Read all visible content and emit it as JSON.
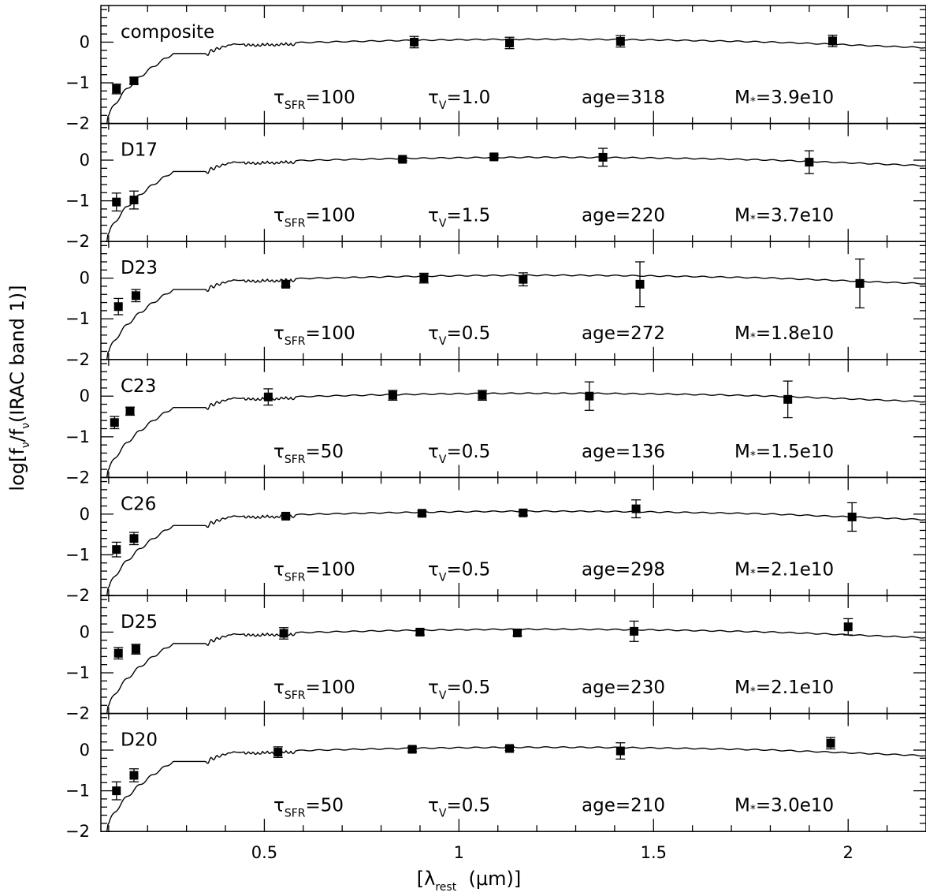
{
  "chart_data": {
    "type": "scatter",
    "xlabel_parts": {
      "open": "[λ",
      "sub": "rest",
      "close": "  (μm)]"
    },
    "ylabel_parts": {
      "a": "log[f",
      "b": "ν",
      "c": "/f",
      "d": "ν",
      "e": "(IRAC band 1)]"
    },
    "xlim": [
      0.08,
      2.2
    ],
    "ylim": [
      -2,
      0.9
    ],
    "x_ticks": [
      0.5,
      1,
      1.5,
      2
    ],
    "x_tick_labels": [
      "0.5",
      "1",
      "1.5",
      "2"
    ],
    "y_ticks": [
      0,
      -1,
      -2
    ],
    "y_tick_labels": [
      "0",
      "−1",
      "−2"
    ],
    "param_labels": {
      "tau_sfr": "τ",
      "tau_sfr_sub": "SFR",
      "tau_v": "τ",
      "tau_v_sub": "V",
      "age": "age=",
      "mass": "M",
      "mass_sub": "*",
      "eq": "="
    },
    "panels": [
      {
        "name": "composite",
        "tau_sfr": "100",
        "tau_v": "1.0",
        "age": "318",
        "mass": "3.9e10",
        "points": [
          {
            "x": 0.12,
            "y": -1.15,
            "e": 0.12
          },
          {
            "x": 0.165,
            "y": -0.95,
            "e": 0.08
          },
          {
            "x": 0.885,
            "y": 0.0,
            "e": 0.14
          },
          {
            "x": 1.13,
            "y": -0.02,
            "e": 0.14
          },
          {
            "x": 1.415,
            "y": 0.02,
            "e": 0.14
          },
          {
            "x": 1.96,
            "y": 0.03,
            "e": 0.14
          }
        ]
      },
      {
        "name": "D17",
        "tau_sfr": "100",
        "tau_v": "1.5",
        "age": "220",
        "mass": "3.7e10",
        "points": [
          {
            "x": 0.12,
            "y": -1.03,
            "e": 0.22
          },
          {
            "x": 0.165,
            "y": -0.98,
            "e": 0.22
          },
          {
            "x": 0.855,
            "y": 0.02,
            "e": 0.04
          },
          {
            "x": 1.09,
            "y": 0.08,
            "e": 0.05
          },
          {
            "x": 1.37,
            "y": 0.07,
            "e": 0.22
          },
          {
            "x": 1.9,
            "y": -0.05,
            "e": 0.28
          }
        ]
      },
      {
        "name": "D23",
        "tau_sfr": "100",
        "tau_v": "0.5",
        "age": "272",
        "mass": "1.8e10",
        "points": [
          {
            "x": 0.125,
            "y": -0.7,
            "e": 0.2
          },
          {
            "x": 0.17,
            "y": -0.43,
            "e": 0.15
          },
          {
            "x": 0.555,
            "y": -0.15,
            "e": 0.06
          },
          {
            "x": 0.91,
            "y": 0.0,
            "e": 0.12
          },
          {
            "x": 1.165,
            "y": -0.03,
            "e": 0.16
          },
          {
            "x": 1.465,
            "y": -0.15,
            "e": 0.55
          },
          {
            "x": 2.03,
            "y": -0.13,
            "e": 0.6
          }
        ]
      },
      {
        "name": "C23",
        "tau_sfr": "50",
        "tau_v": "0.5",
        "age": "136",
        "mass": "1.5e10",
        "points": [
          {
            "x": 0.115,
            "y": -0.65,
            "e": 0.15
          },
          {
            "x": 0.155,
            "y": -0.37,
            "e": 0.1
          },
          {
            "x": 0.51,
            "y": -0.02,
            "e": 0.2
          },
          {
            "x": 0.83,
            "y": 0.02,
            "e": 0.12
          },
          {
            "x": 1.06,
            "y": 0.02,
            "e": 0.12
          },
          {
            "x": 1.335,
            "y": 0.0,
            "e": 0.35
          },
          {
            "x": 1.845,
            "y": -0.08,
            "e": 0.45
          }
        ]
      },
      {
        "name": "C26",
        "tau_sfr": "100",
        "tau_v": "0.5",
        "age": "298",
        "mass": "2.1e10",
        "points": [
          {
            "x": 0.12,
            "y": -0.87,
            "e": 0.18
          },
          {
            "x": 0.165,
            "y": -0.6,
            "e": 0.15
          },
          {
            "x": 0.555,
            "y": -0.05,
            "e": 0.05
          },
          {
            "x": 0.905,
            "y": 0.02,
            "e": 0.06
          },
          {
            "x": 1.165,
            "y": 0.03,
            "e": 0.06
          },
          {
            "x": 1.455,
            "y": 0.13,
            "e": 0.22
          },
          {
            "x": 2.01,
            "y": -0.07,
            "e": 0.35
          }
        ]
      },
      {
        "name": "D25",
        "tau_sfr": "100",
        "tau_v": "0.5",
        "age": "230",
        "mass": "2.1e10",
        "points": [
          {
            "x": 0.125,
            "y": -0.52,
            "e": 0.14
          },
          {
            "x": 0.17,
            "y": -0.42,
            "e": 0.12
          },
          {
            "x": 0.55,
            "y": -0.03,
            "e": 0.14
          },
          {
            "x": 0.9,
            "y": 0.0,
            "e": 0.07
          },
          {
            "x": 1.15,
            "y": -0.02,
            "e": 0.07
          },
          {
            "x": 1.45,
            "y": 0.02,
            "e": 0.25
          },
          {
            "x": 2.0,
            "y": 0.13,
            "e": 0.2
          }
        ]
      },
      {
        "name": "D20",
        "tau_sfr": "50",
        "tau_v": "0.5",
        "age": "210",
        "mass": "3.0e10",
        "points": [
          {
            "x": 0.12,
            "y": -1.0,
            "e": 0.22
          },
          {
            "x": 0.165,
            "y": -0.62,
            "e": 0.16
          },
          {
            "x": 0.535,
            "y": -0.05,
            "e": 0.13
          },
          {
            "x": 0.88,
            "y": 0.02,
            "e": 0.06
          },
          {
            "x": 1.13,
            "y": 0.04,
            "e": 0.05
          },
          {
            "x": 1.415,
            "y": -0.02,
            "e": 0.2
          },
          {
            "x": 1.955,
            "y": 0.17,
            "e": 0.14
          }
        ]
      }
    ]
  }
}
